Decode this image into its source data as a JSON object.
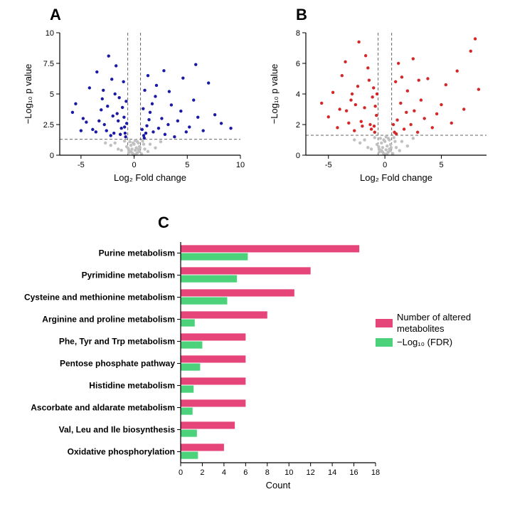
{
  "panelA": {
    "type": "scatter",
    "label": "A",
    "xlabel": "Log₂ Fold change",
    "ylabel": "−Log₁₀ p value",
    "xlim": [
      -7,
      10
    ],
    "ylim": [
      0,
      10
    ],
    "xticks": [
      -5,
      0,
      5,
      10
    ],
    "yticks": [
      0,
      2.5,
      5,
      7.5,
      10
    ],
    "xtick_labels": [
      "-5",
      "0",
      "5",
      "10"
    ],
    "ytick_labels": [
      "0",
      "2.5",
      "5",
      "7.5",
      "10"
    ],
    "threshold_h": 1.3,
    "threshold_v": [
      -0.6,
      0.6
    ],
    "sig_color": "#1a1aa6",
    "nonsig_color": "#c0c0c0",
    "axis_color": "#000000",
    "background_color": "#ffffff",
    "marker_radius": 2.2,
    "label_fontsize": 13,
    "tick_fontsize": 11,
    "grey_points": [
      [
        -0.1,
        0.1
      ],
      [
        0.3,
        0.2
      ],
      [
        -0.5,
        0.4
      ],
      [
        0.2,
        0.6
      ],
      [
        -0.3,
        0.8
      ],
      [
        0.5,
        0.3
      ],
      [
        -0.2,
        0.5
      ],
      [
        0.0,
        0.9
      ],
      [
        0.4,
        1.0
      ],
      [
        -0.4,
        1.1
      ],
      [
        0.1,
        1.2
      ],
      [
        -0.5,
        0.2
      ],
      [
        0.5,
        0.7
      ],
      [
        -0.1,
        1.0
      ],
      [
        0.3,
        1.1
      ],
      [
        -0.3,
        0.3
      ],
      [
        0.2,
        0.1
      ],
      [
        1.0,
        0.5
      ],
      [
        -1.2,
        0.4
      ],
      [
        1.5,
        0.9
      ],
      [
        -1.8,
        1.0
      ],
      [
        2.0,
        0.6
      ],
      [
        -2.2,
        0.8
      ],
      [
        0.8,
        1.15
      ],
      [
        -0.9,
        1.15
      ],
      [
        2.5,
        1.1
      ],
      [
        -2.7,
        1.0
      ],
      [
        1.3,
        0.3
      ],
      [
        -1.5,
        0.5
      ],
      [
        0.7,
        0.1
      ],
      [
        -0.7,
        0.7
      ],
      [
        0.9,
        0.9
      ],
      [
        0.0,
        0.0
      ],
      [
        0.55,
        0.6
      ],
      [
        -0.55,
        0.55
      ],
      [
        0.1,
        0.4
      ],
      [
        -0.2,
        0.2
      ],
      [
        0.4,
        0.45
      ]
    ],
    "sig_points": [
      [
        -5.5,
        4.2
      ],
      [
        -4.8,
        3.0
      ],
      [
        -4.2,
        5.5
      ],
      [
        -3.9,
        2.1
      ],
      [
        -3.5,
        6.8
      ],
      [
        -3.1,
        3.7
      ],
      [
        -2.8,
        2.5
      ],
      [
        -2.5,
        4.0
      ],
      [
        -2.2,
        1.6
      ],
      [
        -2.0,
        3.2
      ],
      [
        -1.8,
        5.0
      ],
      [
        -1.5,
        2.8
      ],
      [
        -1.3,
        1.7
      ],
      [
        -1.1,
        3.9
      ],
      [
        -0.9,
        2.3
      ],
      [
        -0.75,
        4.4
      ],
      [
        -1.0,
        6.0
      ],
      [
        -1.7,
        7.3
      ],
      [
        -2.4,
        8.1
      ],
      [
        -3.0,
        4.6
      ],
      [
        -2.6,
        2.0
      ],
      [
        -1.2,
        2.2
      ],
      [
        -0.8,
        1.5
      ],
      [
        -4.5,
        2.7
      ],
      [
        -5.0,
        2.0
      ],
      [
        -5.8,
        3.5
      ],
      [
        -3.6,
        1.9
      ],
      [
        -1.4,
        4.7
      ],
      [
        -0.95,
        3.1
      ],
      [
        -1.9,
        1.8
      ],
      [
        -2.1,
        6.2
      ],
      [
        -2.9,
        5.3
      ],
      [
        -3.3,
        2.8
      ],
      [
        -1.6,
        3.4
      ],
      [
        -0.7,
        2.6
      ],
      [
        0.9,
        1.6
      ],
      [
        1.2,
        2.4
      ],
      [
        1.5,
        3.5
      ],
      [
        1.8,
        1.9
      ],
      [
        2.0,
        4.8
      ],
      [
        2.3,
        2.2
      ],
      [
        2.6,
        3.0
      ],
      [
        2.9,
        1.7
      ],
      [
        3.2,
        2.5
      ],
      [
        3.5,
        4.1
      ],
      [
        3.8,
        1.5
      ],
      [
        4.1,
        2.8
      ],
      [
        4.4,
        3.6
      ],
      [
        4.9,
        1.9
      ],
      [
        5.2,
        2.3
      ],
      [
        5.6,
        4.5
      ],
      [
        6.0,
        3.1
      ],
      [
        6.5,
        2.0
      ],
      [
        7.0,
        5.9
      ],
      [
        7.6,
        3.3
      ],
      [
        8.2,
        2.6
      ],
      [
        1.0,
        5.3
      ],
      [
        1.3,
        6.5
      ],
      [
        1.7,
        4.2
      ],
      [
        0.85,
        3.8
      ],
      [
        0.75,
        2.1
      ],
      [
        2.1,
        5.7
      ],
      [
        2.8,
        6.9
      ],
      [
        3.3,
        5.2
      ],
      [
        0.95,
        1.4
      ],
      [
        1.1,
        1.8
      ],
      [
        1.4,
        2.9
      ],
      [
        4.6,
        6.3
      ],
      [
        5.8,
        7.4
      ],
      [
        9.1,
        2.2
      ],
      [
        -0.85,
        1.8
      ]
    ]
  },
  "panelB": {
    "type": "scatter",
    "label": "B",
    "xlabel": "Log₂ Fold change",
    "ylabel": "−Log₁₀ p value",
    "xlim": [
      -7,
      9
    ],
    "ylim": [
      0,
      8
    ],
    "xticks": [
      -5,
      0,
      5
    ],
    "yticks": [
      0,
      2,
      4,
      6,
      8
    ],
    "xtick_labels": [
      "-5",
      "0",
      "5"
    ],
    "ytick_labels": [
      "0",
      "2",
      "4",
      "6",
      "8"
    ],
    "threshold_h": 1.3,
    "threshold_v": [
      -0.6,
      0.6
    ],
    "sig_color": "#d62728",
    "nonsig_color": "#c0c0c0",
    "axis_color": "#000000",
    "background_color": "#ffffff",
    "marker_radius": 2.2,
    "label_fontsize": 13,
    "tick_fontsize": 11,
    "grey_points": [
      [
        -0.1,
        0.1
      ],
      [
        0.3,
        0.2
      ],
      [
        -0.5,
        0.4
      ],
      [
        0.2,
        0.6
      ],
      [
        -0.3,
        0.8
      ],
      [
        0.5,
        0.3
      ],
      [
        -0.2,
        0.5
      ],
      [
        0.0,
        0.9
      ],
      [
        0.4,
        1.0
      ],
      [
        -0.4,
        1.1
      ],
      [
        0.1,
        1.2
      ],
      [
        -0.5,
        0.2
      ],
      [
        0.5,
        0.7
      ],
      [
        -0.1,
        1.0
      ],
      [
        0.3,
        1.1
      ],
      [
        -0.3,
        0.3
      ],
      [
        0.2,
        0.1
      ],
      [
        1.0,
        0.5
      ],
      [
        -1.2,
        0.4
      ],
      [
        1.5,
        0.9
      ],
      [
        -1.8,
        1.0
      ],
      [
        2.0,
        0.6
      ],
      [
        -2.2,
        0.8
      ],
      [
        0.8,
        1.15
      ],
      [
        -0.9,
        1.15
      ],
      [
        2.5,
        1.1
      ],
      [
        -2.7,
        1.0
      ],
      [
        1.3,
        0.3
      ],
      [
        -1.5,
        0.5
      ],
      [
        0.7,
        0.1
      ],
      [
        -0.7,
        0.7
      ],
      [
        0.9,
        0.9
      ],
      [
        0.0,
        0.05
      ],
      [
        0.55,
        0.5
      ],
      [
        -0.55,
        0.55
      ],
      [
        0.1,
        0.35
      ],
      [
        -0.2,
        0.2
      ],
      [
        0.4,
        0.4
      ]
    ],
    "sig_points": [
      [
        -5.6,
        3.4
      ],
      [
        -5.0,
        2.5
      ],
      [
        -4.6,
        4.1
      ],
      [
        -4.2,
        1.8
      ],
      [
        -3.8,
        5.2
      ],
      [
        -3.4,
        2.9
      ],
      [
        -3.0,
        3.6
      ],
      [
        -2.7,
        1.6
      ],
      [
        -2.4,
        4.5
      ],
      [
        -2.1,
        2.2
      ],
      [
        -1.8,
        3.1
      ],
      [
        -1.5,
        5.7
      ],
      [
        -1.3,
        2.0
      ],
      [
        -1.1,
        3.8
      ],
      [
        -0.9,
        1.5
      ],
      [
        -0.75,
        2.6
      ],
      [
        -1.0,
        4.4
      ],
      [
        -1.7,
        6.5
      ],
      [
        -2.3,
        7.4
      ],
      [
        -2.9,
        4.0
      ],
      [
        -3.5,
        6.1
      ],
      [
        -4.0,
        3.0
      ],
      [
        -1.2,
        1.7
      ],
      [
        -0.85,
        3.2
      ],
      [
        -2.0,
        1.9
      ],
      [
        -2.6,
        3.3
      ],
      [
        -3.2,
        2.1
      ],
      [
        -1.4,
        4.9
      ],
      [
        -0.7,
        4.0
      ],
      [
        0.85,
        1.5
      ],
      [
        1.1,
        2.3
      ],
      [
        1.4,
        3.4
      ],
      [
        1.7,
        1.7
      ],
      [
        2.0,
        4.2
      ],
      [
        2.3,
        2.0
      ],
      [
        2.6,
        2.9
      ],
      [
        2.9,
        1.5
      ],
      [
        3.2,
        3.6
      ],
      [
        3.5,
        2.4
      ],
      [
        3.8,
        5.0
      ],
      [
        4.2,
        1.8
      ],
      [
        4.6,
        2.7
      ],
      [
        5.0,
        3.3
      ],
      [
        5.4,
        4.6
      ],
      [
        5.9,
        2.1
      ],
      [
        6.4,
        5.5
      ],
      [
        7.0,
        3.0
      ],
      [
        7.6,
        6.8
      ],
      [
        8.3,
        4.3
      ],
      [
        0.95,
        4.8
      ],
      [
        1.2,
        6.0
      ],
      [
        1.5,
        5.1
      ],
      [
        1.9,
        2.8
      ],
      [
        2.5,
        6.3
      ],
      [
        3.0,
        4.9
      ],
      [
        0.75,
        2.0
      ],
      [
        1.0,
        1.4
      ],
      [
        8.0,
        7.6
      ],
      [
        -0.95,
        1.9
      ]
    ]
  },
  "panelC": {
    "type": "bar_horizontal",
    "label": "C",
    "xlabel": "Count",
    "xlim": [
      0,
      18
    ],
    "xticks": [
      0,
      2,
      4,
      6,
      8,
      10,
      12,
      14,
      16,
      18
    ],
    "xtick_labels": [
      "0",
      "2",
      "4",
      "6",
      "8",
      "10",
      "12",
      "14",
      "16",
      "18"
    ],
    "categories": [
      "Purine metabolism",
      "Pyrimidine metabolism",
      "Cysteine and methionine metabolism",
      "Arginine and proline metabolism",
      "Phe, Tyr and Trp metabolism",
      "Pentose phosphate pathway",
      "Histidine metabolism",
      "Ascorbate and aldarate metabolism",
      "Val, Leu and Ile biosynthesis",
      "Oxidative phosphorylation"
    ],
    "series": [
      {
        "name": "Number of altered metabolites",
        "color": "#e6457a",
        "values": [
          16.5,
          12.0,
          10.5,
          8.0,
          6.0,
          6.0,
          6.0,
          6.0,
          5.0,
          4.0
        ]
      },
      {
        "name": "−Log₁₀ (FDR)",
        "color": "#4bd27a",
        "values": [
          6.2,
          5.2,
          4.3,
          1.3,
          2.0,
          1.8,
          1.2,
          1.1,
          1.5,
          1.6
        ]
      }
    ],
    "axis_color": "#000000",
    "background_color": "#ffffff",
    "bar_height": 0.36,
    "label_fontsize": 13,
    "tick_fontsize": 11,
    "cat_fontsize": 12
  },
  "legend": {
    "items": [
      {
        "swatch": "#e6457a",
        "label": "Number of altered metabolites"
      },
      {
        "swatch": "#4bd27a",
        "label": "−Log₁₀ (FDR)"
      }
    ]
  }
}
